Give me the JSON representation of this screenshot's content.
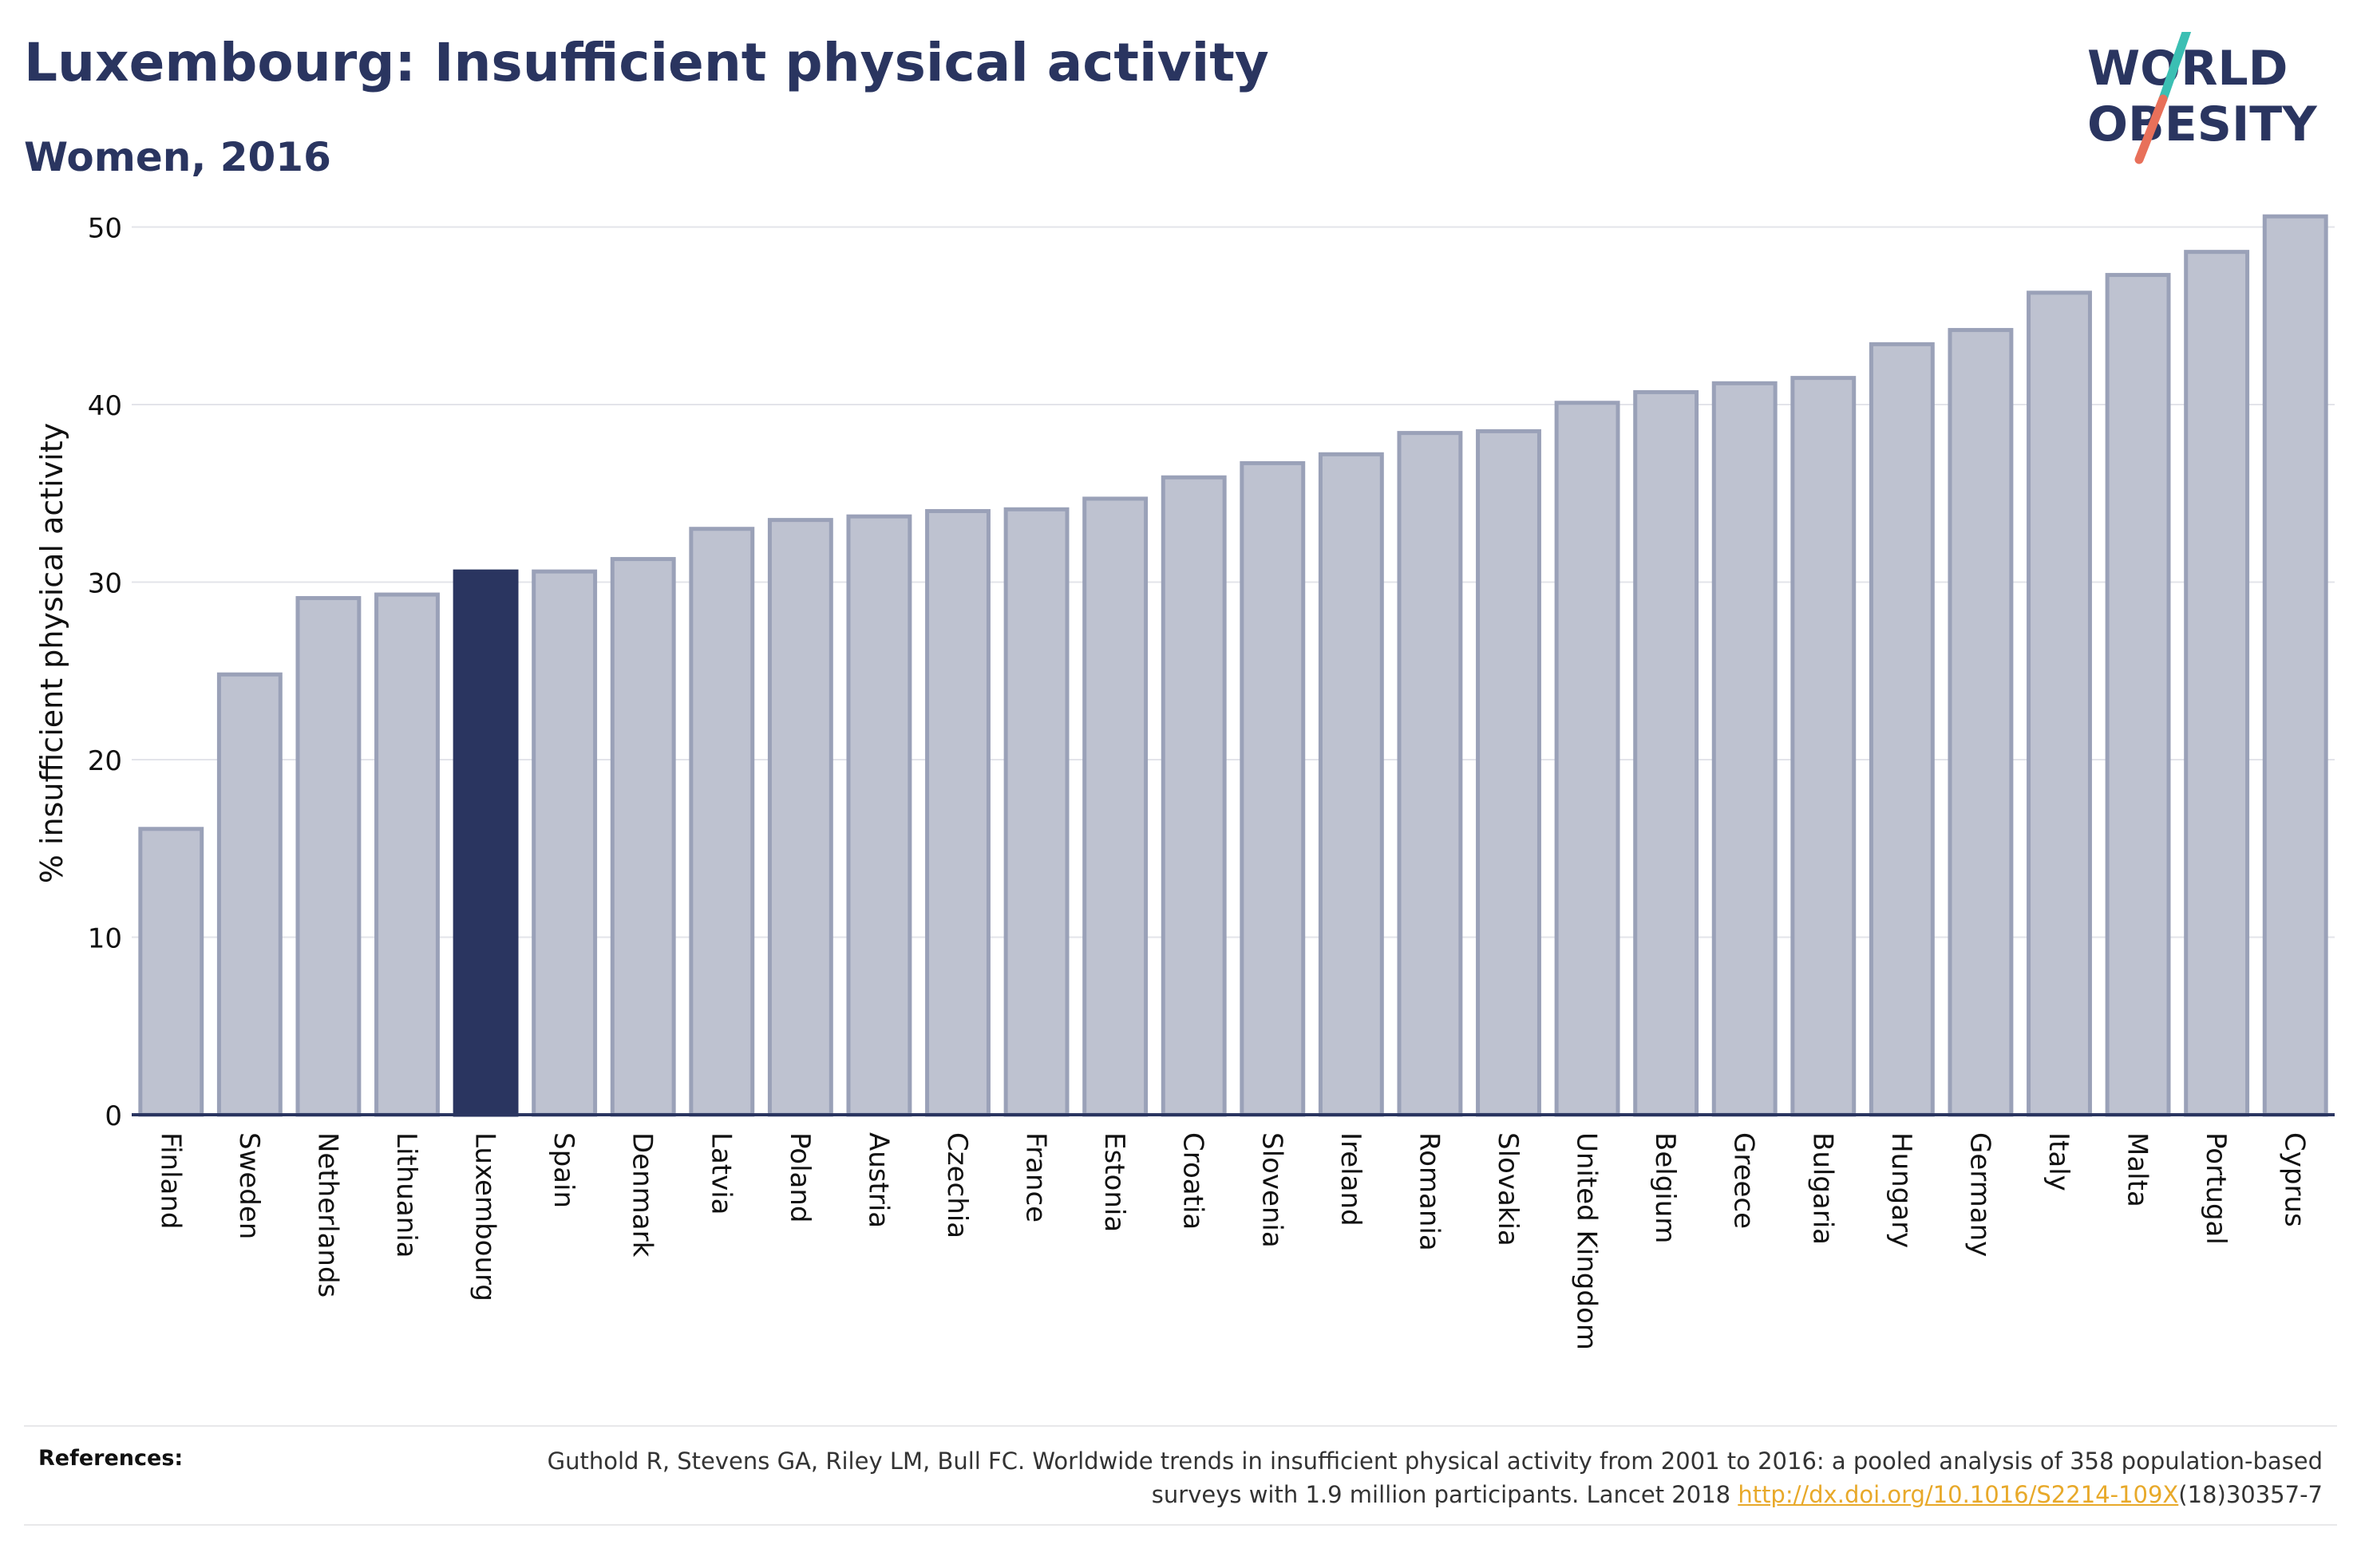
{
  "header": {
    "title": "Luxembourg: Insufficient physical activity",
    "subtitle": "Women, 2016"
  },
  "logo": {
    "line1": "WORLD",
    "line2": "OBESITY",
    "colors": {
      "text": "#2a3560",
      "slash_teal": "#3bbfb3",
      "slash_coral": "#e8705a"
    }
  },
  "chart_data": {
    "type": "bar",
    "ylabel": "% insufficient physical activity",
    "xlabel": "",
    "ylim": [
      0,
      52
    ],
    "yticks": [
      0,
      10,
      20,
      30,
      40,
      50
    ],
    "grid": true,
    "highlight": "Luxembourg",
    "colors": {
      "bar": "#bec2d0",
      "bar_edge": "#9aa1b8",
      "highlight": "#2a3560",
      "grid": "#e3e4ea",
      "axis": "#2a3560"
    },
    "categories": [
      "Finland",
      "Sweden",
      "Netherlands",
      "Lithuania",
      "Luxembourg",
      "Spain",
      "Denmark",
      "Latvia",
      "Poland",
      "Austria",
      "Czechia",
      "France",
      "Estonia",
      "Croatia",
      "Slovenia",
      "Ireland",
      "Romania",
      "Slovakia",
      "United Kingdom",
      "Belgium",
      "Greece",
      "Bulgaria",
      "Hungary",
      "Germany",
      "Italy",
      "Malta",
      "Portugal",
      "Cyprus"
    ],
    "values": [
      16.1,
      24.8,
      29.1,
      29.3,
      30.6,
      30.6,
      31.3,
      33.0,
      33.5,
      33.7,
      34.0,
      34.1,
      34.7,
      35.9,
      36.7,
      37.2,
      38.4,
      38.5,
      40.1,
      40.7,
      41.2,
      41.5,
      43.4,
      44.2,
      46.3,
      47.3,
      48.6,
      50.6
    ]
  },
  "references": {
    "label": "References:",
    "text_before_link": "Guthold R, Stevens GA, Riley LM, Bull FC. Worldwide trends in insufficient physical activity from 2001 to 2016: a pooled analysis of 358 population-based surveys with 1.9 million participants. Lancet 2018 ",
    "link": "http://dx.doi.org/10.1016/S2214-109X",
    "text_after_link": "(18)30357-7"
  }
}
